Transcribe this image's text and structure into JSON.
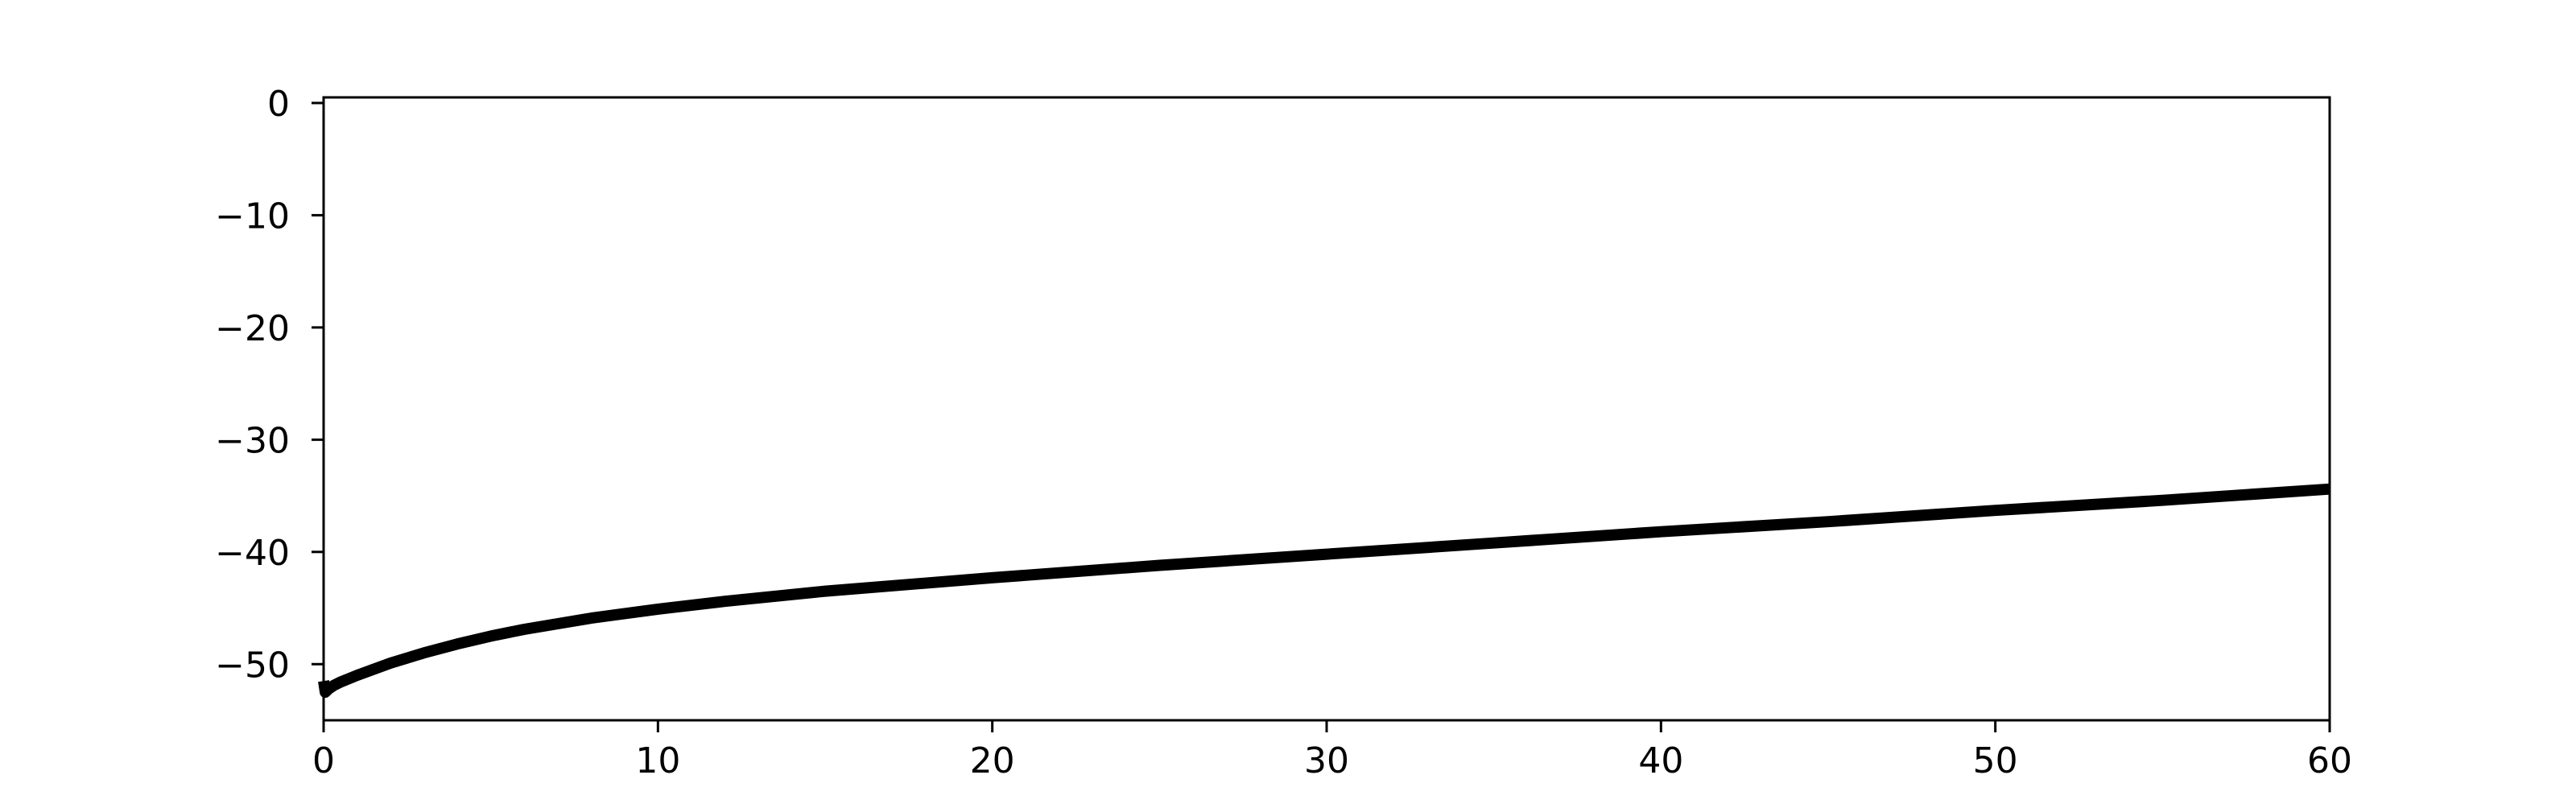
{
  "chart_data": {
    "type": "line",
    "title": "",
    "xlabel": "",
    "ylabel": "",
    "xlim": [
      0,
      60
    ],
    "ylim": [
      -55,
      0.5
    ],
    "x_ticks": [
      0,
      10,
      20,
      30,
      40,
      50,
      60
    ],
    "x_tick_labels": [
      "0",
      "10",
      "20",
      "30",
      "40",
      "50",
      "60"
    ],
    "y_ticks": [
      0,
      -10,
      -20,
      -30,
      -40,
      -50
    ],
    "y_tick_labels": [
      "0",
      "−10",
      "−20",
      "−30",
      "−40",
      "−50"
    ],
    "grid": false,
    "legend": "none",
    "series": [
      {
        "color": "#000000",
        "x": [
          0,
          0.05,
          0.15,
          0.3,
          0.5,
          1,
          2,
          3,
          4,
          5,
          6,
          8,
          10,
          12,
          15,
          20,
          25,
          30,
          35,
          40,
          45,
          50,
          55,
          60
        ],
        "y": [
          -51.5,
          -52.5,
          -52.2,
          -51.9,
          -51.6,
          -51.0,
          -49.9,
          -49.0,
          -48.2,
          -47.5,
          -46.9,
          -45.9,
          -45.1,
          -44.4,
          -43.5,
          -42.3,
          -41.2,
          -40.2,
          -39.2,
          -38.2,
          -37.3,
          -36.3,
          -35.4,
          -34.4
        ]
      }
    ]
  }
}
